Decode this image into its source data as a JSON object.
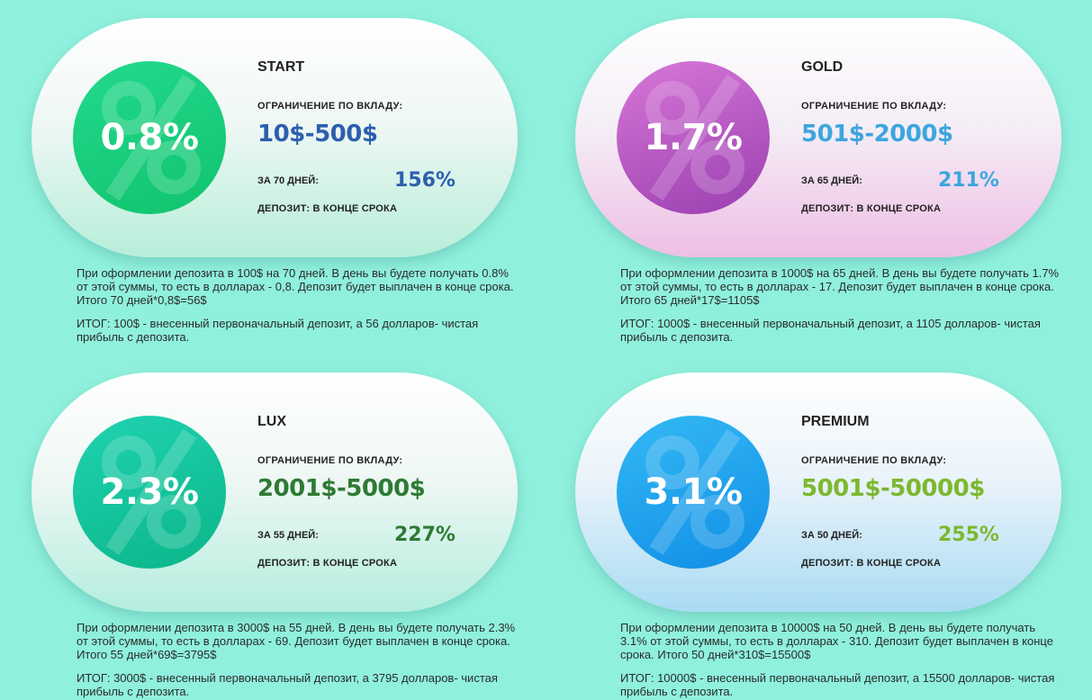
{
  "plans": [
    {
      "name": "START",
      "rate": "0.8%",
      "limit_label": "ОГРАНИЧЕНИЕ ПО ВКЛАДУ:",
      "range": "10$-500$",
      "term": "ЗА 70 ДНЕЙ:",
      "total": "156%",
      "payout": "ДЕПОЗИТ: В КОНЦЕ СРОКА",
      "description": "При оформлении депозита в 100$ на 70 дней. В день вы будете получать 0.8% от этой суммы, то есть в долларах - 0,8. Депозит будет выплачен в конце срока. Итого 70 дней*0,8$=56$",
      "summary": "ИТОГ: 100$ - внесенный первоначальный депозит, а 56 долларов- чистая прибыль с депозита.",
      "accent_color": "#2d5fae"
    },
    {
      "name": "GOLD",
      "rate": "1.7%",
      "limit_label": "ОГРАНИЧЕНИЕ ПО ВКЛАДУ:",
      "range": "501$-2000$",
      "term": "ЗА 65 ДНЕЙ:",
      "total": "211%",
      "payout": "ДЕПОЗИТ: В КОНЦЕ СРОКА",
      "description": "При оформлении депозита в 1000$ на 65 дней. В день вы будете получать 1.7% от этой суммы, то есть в долларах - 17. Депозит будет выплачен в конце срока. Итого 65 дней*17$=1105$",
      "summary": "ИТОГ: 1000$ - внесенный первоначальный депозит, а 1105 долларов- чистая прибыль с депозита.",
      "accent_color": "#3ca6de"
    },
    {
      "name": "LUX",
      "rate": "2.3%",
      "limit_label": "ОГРАНИЧЕНИЕ ПО ВКЛАДУ:",
      "range": "2001$-5000$",
      "term": "ЗА 55 ДНЕЙ:",
      "total": "227%",
      "payout": "ДЕПОЗИТ: В КОНЦЕ СРОКА",
      "description": "При оформлении депозита в 3000$ на 55 дней. В день вы будете получать 2.3% от этой суммы, то есть в долларах - 69. Депозит будет выплачен в конце срока. Итого 55 дней*69$=3795$",
      "summary": "ИТОГ: 3000$ - внесенный первоначальный депозит, а 3795 долларов- чистая прибыль с депозита.",
      "accent_color": "#2e7a34"
    },
    {
      "name": "PREMIUM",
      "rate": "3.1%",
      "limit_label": "ОГРАНИЧЕНИЕ ПО ВКЛАДУ:",
      "range": "5001$-50000$",
      "term": "ЗА 50 ДНЕЙ:",
      "total": "255%",
      "payout": "ДЕПОЗИТ: В КОНЦЕ СРОКА",
      "description": "При оформлении депозита в 10000$ на 50 дней. В день вы будете получать 3.1% от этой суммы, то есть в долларах - 310. Депозит будет выплачен в конце срока. Итого 50 дней*310$=15500$",
      "summary": "ИТОГ: 10000$ - внесенный первоначальный депозит, а 15500 долларов- чистая прибыль с депозита.",
      "accent_color": "#7cb82f"
    }
  ],
  "background_color": "#8ff0dd",
  "decor_icon": "percent-watermark-icon"
}
